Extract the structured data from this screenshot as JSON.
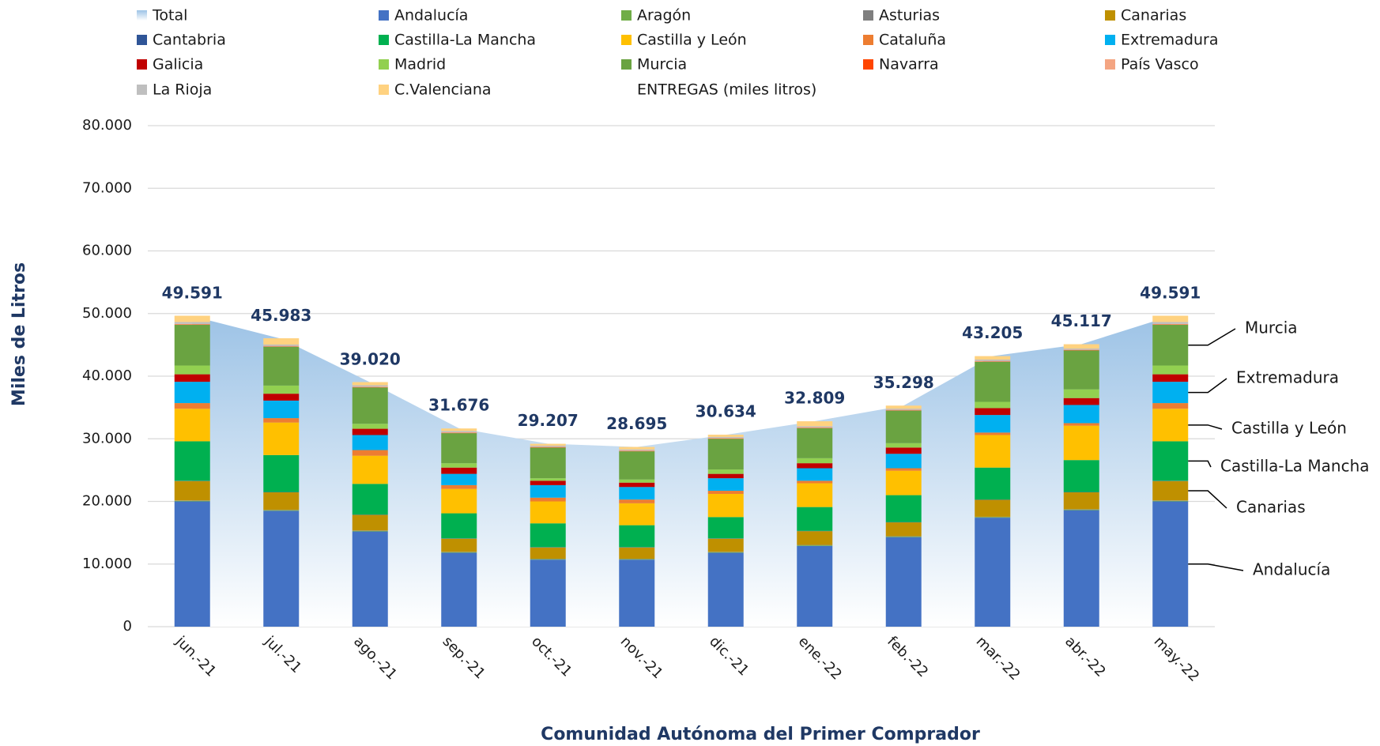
{
  "chart_data": {
    "type": "stacked_bar",
    "x_title": "Comunidad Autónoma del Primer Comprador",
    "y_title": "Miles de Litros",
    "legend_note": "ENTREGAS (miles litros)",
    "categories": [
      "jun.-21",
      "jul.-21",
      "ago.-21",
      "sep.-21",
      "oct.-21",
      "nov.-21",
      "dic.-21",
      "ene.-22",
      "feb.-22",
      "mar.-22",
      "abr.-22",
      "may.-22"
    ],
    "ylim": [
      0,
      80000
    ],
    "yticks": [
      0,
      {
        "value": 10000,
        "label": "10.000"
      },
      {
        "value": 20000,
        "label": "20.000"
      },
      {
        "value": 30000,
        "label": "30.000"
      },
      {
        "value": 40000,
        "label": "40.000"
      },
      {
        "value": 50000,
        "label": "50.000"
      },
      {
        "value": 60000,
        "label": "60.000"
      },
      {
        "value": 70000,
        "label": "70.000"
      },
      {
        "value": 80000,
        "label": "80.000"
      }
    ],
    "grid": true,
    "total": {
      "name": "Total",
      "color": "#9dc3e6",
      "values": [
        49591,
        45983,
        39020,
        31676,
        29207,
        28695,
        30634,
        32809,
        35298,
        43205,
        45117,
        49591
      ],
      "value_labels": [
        "49.591",
        "45.983",
        "39.020",
        "31.676",
        "29.207",
        "28.695",
        "30.634",
        "32.809",
        "35.298",
        "43.205",
        "45.117",
        "49.591"
      ]
    },
    "series": [
      {
        "name": "Andalucía",
        "color": "#4472c4",
        "values": [
          20000,
          18500,
          15200,
          11800,
          10700,
          10700,
          11800,
          12900,
          14300,
          17400,
          18600,
          20000
        ]
      },
      {
        "name": "Aragón",
        "color": "#70ad47",
        "values": [
          100,
          100,
          100,
          100,
          100,
          100,
          100,
          100,
          100,
          100,
          100,
          100
        ]
      },
      {
        "name": "Asturias",
        "color": "#7f7f7f",
        "values": [
          50,
          50,
          50,
          50,
          50,
          50,
          50,
          50,
          50,
          50,
          50,
          50
        ]
      },
      {
        "name": "Canarias",
        "color": "#bf9000",
        "values": [
          3100,
          2800,
          2500,
          2100,
          1800,
          1800,
          2100,
          2200,
          2200,
          2700,
          2700,
          3100
        ]
      },
      {
        "name": "Cantabria",
        "color": "#2f5597",
        "values": [
          50,
          50,
          50,
          50,
          50,
          50,
          50,
          50,
          50,
          50,
          50,
          50
        ]
      },
      {
        "name": "Castilla-La Mancha",
        "color": "#00b050",
        "values": [
          6300,
          5900,
          4900,
          4000,
          3800,
          3500,
          3400,
          3800,
          4300,
          5100,
          5100,
          6300
        ]
      },
      {
        "name": "Castilla y León",
        "color": "#ffc000",
        "values": [
          5200,
          5200,
          4500,
          3900,
          3500,
          3500,
          3700,
          3800,
          3900,
          5200,
          5500,
          5200
        ]
      },
      {
        "name": "Cataluña",
        "color": "#ed7d31",
        "values": [
          900,
          700,
          900,
          600,
          600,
          600,
          500,
          400,
          400,
          400,
          400,
          900
        ]
      },
      {
        "name": "Extremadura",
        "color": "#00b0f0",
        "values": [
          3400,
          2800,
          2400,
          1800,
          2000,
          2000,
          2000,
          2000,
          2300,
          2800,
          2900,
          3400
        ]
      },
      {
        "name": "Galicia",
        "color": "#c00000",
        "values": [
          1200,
          1100,
          1000,
          1000,
          700,
          700,
          700,
          800,
          1000,
          1100,
          1100,
          1200
        ]
      },
      {
        "name": "Madrid",
        "color": "#92d050",
        "values": [
          1400,
          1300,
          800,
          700,
          400,
          500,
          700,
          800,
          700,
          1000,
          1400,
          1400
        ]
      },
      {
        "name": "Murcia",
        "color": "#6aa341",
        "values": [
          6500,
          6200,
          5800,
          4800,
          4900,
          4500,
          4900,
          4800,
          5200,
          6400,
          6200,
          6500
        ]
      },
      {
        "name": "Navarra",
        "color": "#ff4500",
        "values": [
          50,
          50,
          50,
          50,
          50,
          50,
          50,
          50,
          50,
          50,
          50,
          50
        ]
      },
      {
        "name": "País Vasco",
        "color": "#f4a582",
        "values": [
          100,
          100,
          100,
          100,
          100,
          100,
          100,
          100,
          100,
          100,
          100,
          100
        ]
      },
      {
        "name": "La Rioja",
        "color": "#bfbfbf",
        "values": [
          300,
          200,
          200,
          200,
          150,
          150,
          150,
          150,
          150,
          200,
          150,
          300
        ]
      },
      {
        "name": "C.Valenciana",
        "color": "#ffd280",
        "values": [
          1000,
          1000,
          500,
          400,
          300,
          400,
          350,
          800,
          500,
          550,
          700,
          1000
        ]
      }
    ],
    "annotations": [
      {
        "text": "Murcia"
      },
      {
        "text": "Extremadura"
      },
      {
        "text": "Castilla y León"
      },
      {
        "text": "Castilla-La Mancha"
      },
      {
        "text": "Canarias"
      },
      {
        "text": "Andalucía"
      }
    ]
  }
}
